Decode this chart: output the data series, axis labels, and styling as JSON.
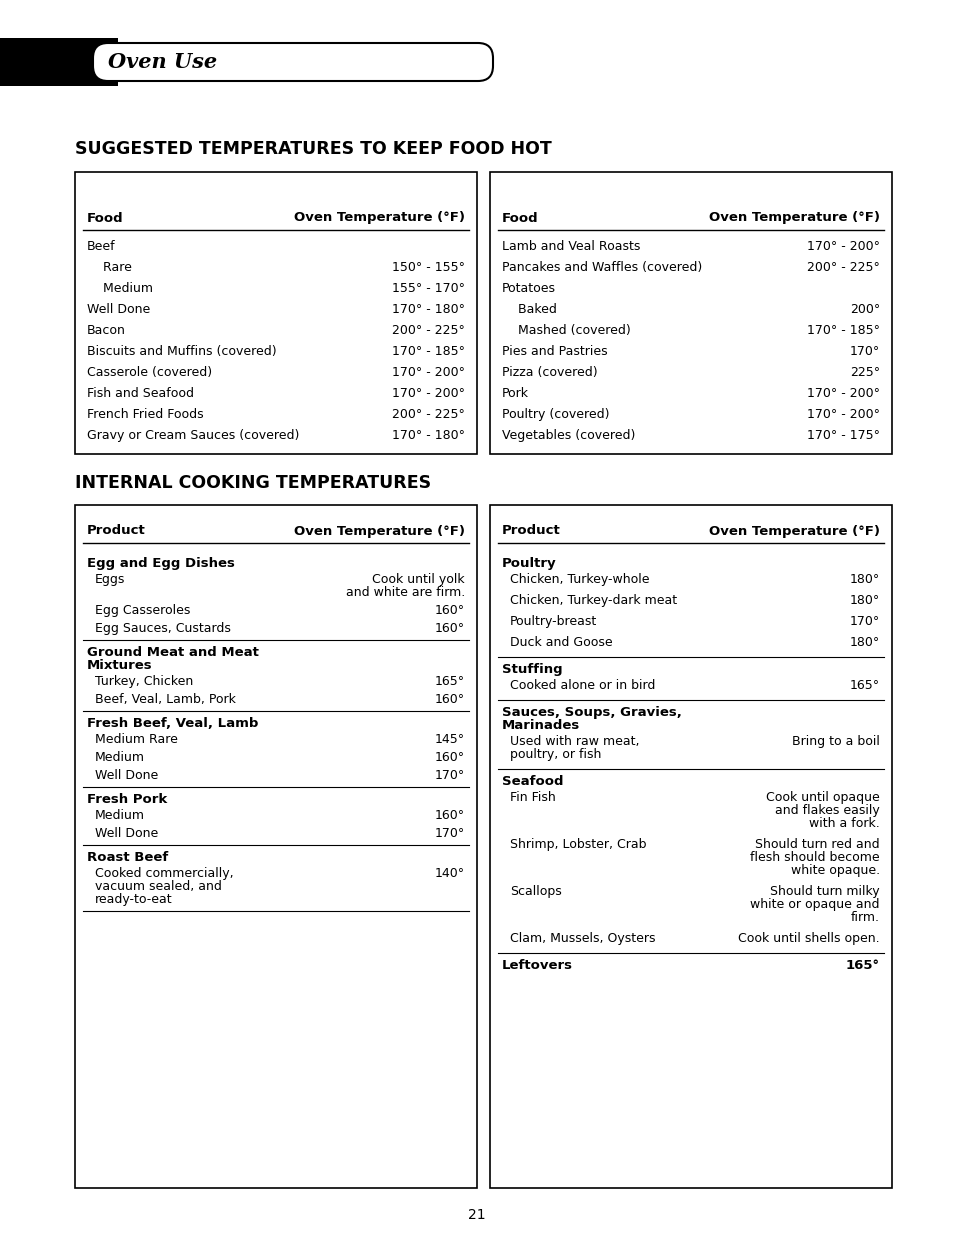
{
  "page_bg": "#ffffff",
  "header_text": "Oven Use",
  "section1_title": "SUGGESTED TEMPERATURES TO KEEP FOOD HOT",
  "section2_title": "INTERNAL COOKING TEMPERATURES",
  "page_number": "21",
  "table1_left_rows": [
    [
      "Beef",
      ""
    ],
    [
      "    Rare",
      "150° - 155°"
    ],
    [
      "    Medium",
      "155° - 170°"
    ],
    [
      "Well Done",
      "170° - 180°"
    ],
    [
      "Bacon",
      "200° - 225°"
    ],
    [
      "Biscuits and Muffins (covered)",
      "170° - 185°"
    ],
    [
      "Casserole (covered)",
      "170° - 200°"
    ],
    [
      "Fish and Seafood",
      "170° - 200°"
    ],
    [
      "French Fried Foods",
      "200° - 225°"
    ],
    [
      "Gravy or Cream Sauces (covered)",
      "170° - 180°"
    ]
  ],
  "table1_right_rows": [
    [
      "Lamb and Veal Roasts",
      "170° - 200°"
    ],
    [
      "Pancakes and Waffles (covered)",
      "200° - 225°"
    ],
    [
      "Potatoes",
      ""
    ],
    [
      "    Baked",
      "200°"
    ],
    [
      "    Mashed (covered)",
      "170° - 185°"
    ],
    [
      "Pies and Pastries",
      "170°"
    ],
    [
      "Pizza (covered)",
      "225°"
    ],
    [
      "Pork",
      "170° - 200°"
    ],
    [
      "Poultry (covered)",
      "170° - 200°"
    ],
    [
      "Vegetables (covered)",
      "170° - 175°"
    ]
  ],
  "table2_left_sections": [
    {
      "title": "Egg and Egg Dishes",
      "rows": [
        [
          "Eggs",
          "Cook until yolk\nand white are firm."
        ],
        [
          "Egg Casseroles",
          "160°"
        ],
        [
          "Egg Sauces, Custards",
          "160°"
        ]
      ]
    },
    {
      "title": "Ground Meat and Meat\nMixtures",
      "rows": [
        [
          "Turkey, Chicken",
          "165°"
        ],
        [
          "Beef, Veal, Lamb, Pork",
          "160°"
        ]
      ]
    },
    {
      "title": "Fresh Beef, Veal, Lamb",
      "rows": [
        [
          "Medium Rare",
          "145°"
        ],
        [
          "Medium",
          "160°"
        ],
        [
          "Well Done",
          "170°"
        ]
      ]
    },
    {
      "title": "Fresh Pork",
      "rows": [
        [
          "Medium",
          "160°"
        ],
        [
          "Well Done",
          "170°"
        ]
      ]
    },
    {
      "title": "Roast Beef",
      "rows": [
        [
          "Cooked commercially,\nvacuum sealed, and\nready-to-eat",
          "140°"
        ]
      ]
    }
  ],
  "table2_right_sections": [
    {
      "title": "Poultry",
      "rows": [
        [
          "Chicken, Turkey-whole",
          "180°"
        ],
        [
          "Chicken, Turkey-dark meat",
          "180°"
        ],
        [
          "Poultry-breast",
          "170°"
        ],
        [
          "Duck and Goose",
          "180°"
        ]
      ]
    },
    {
      "title": "Stuffing",
      "rows": [
        [
          "Cooked alone or in bird",
          "165°"
        ]
      ]
    },
    {
      "title": "Sauces, Soups, Gravies,\nMarinades",
      "rows": [
        [
          "Used with raw meat,\npoultry, or fish",
          "Bring to a boil"
        ]
      ]
    },
    {
      "title": "Seafood",
      "rows": [
        [
          "Fin Fish",
          "Cook until opaque\nand flakes easily\nwith a fork."
        ],
        [
          "Shrimp, Lobster, Crab",
          "Should turn red and\nflesh should become\nwhite opaque."
        ],
        [
          "Scallops",
          "Should turn milky\nwhite or opaque and\nfirm."
        ],
        [
          "Clam, Mussels, Oysters",
          "Cook until shells open."
        ]
      ]
    },
    {
      "title": "Leftovers",
      "rows": [],
      "inline_value": "165°"
    }
  ]
}
